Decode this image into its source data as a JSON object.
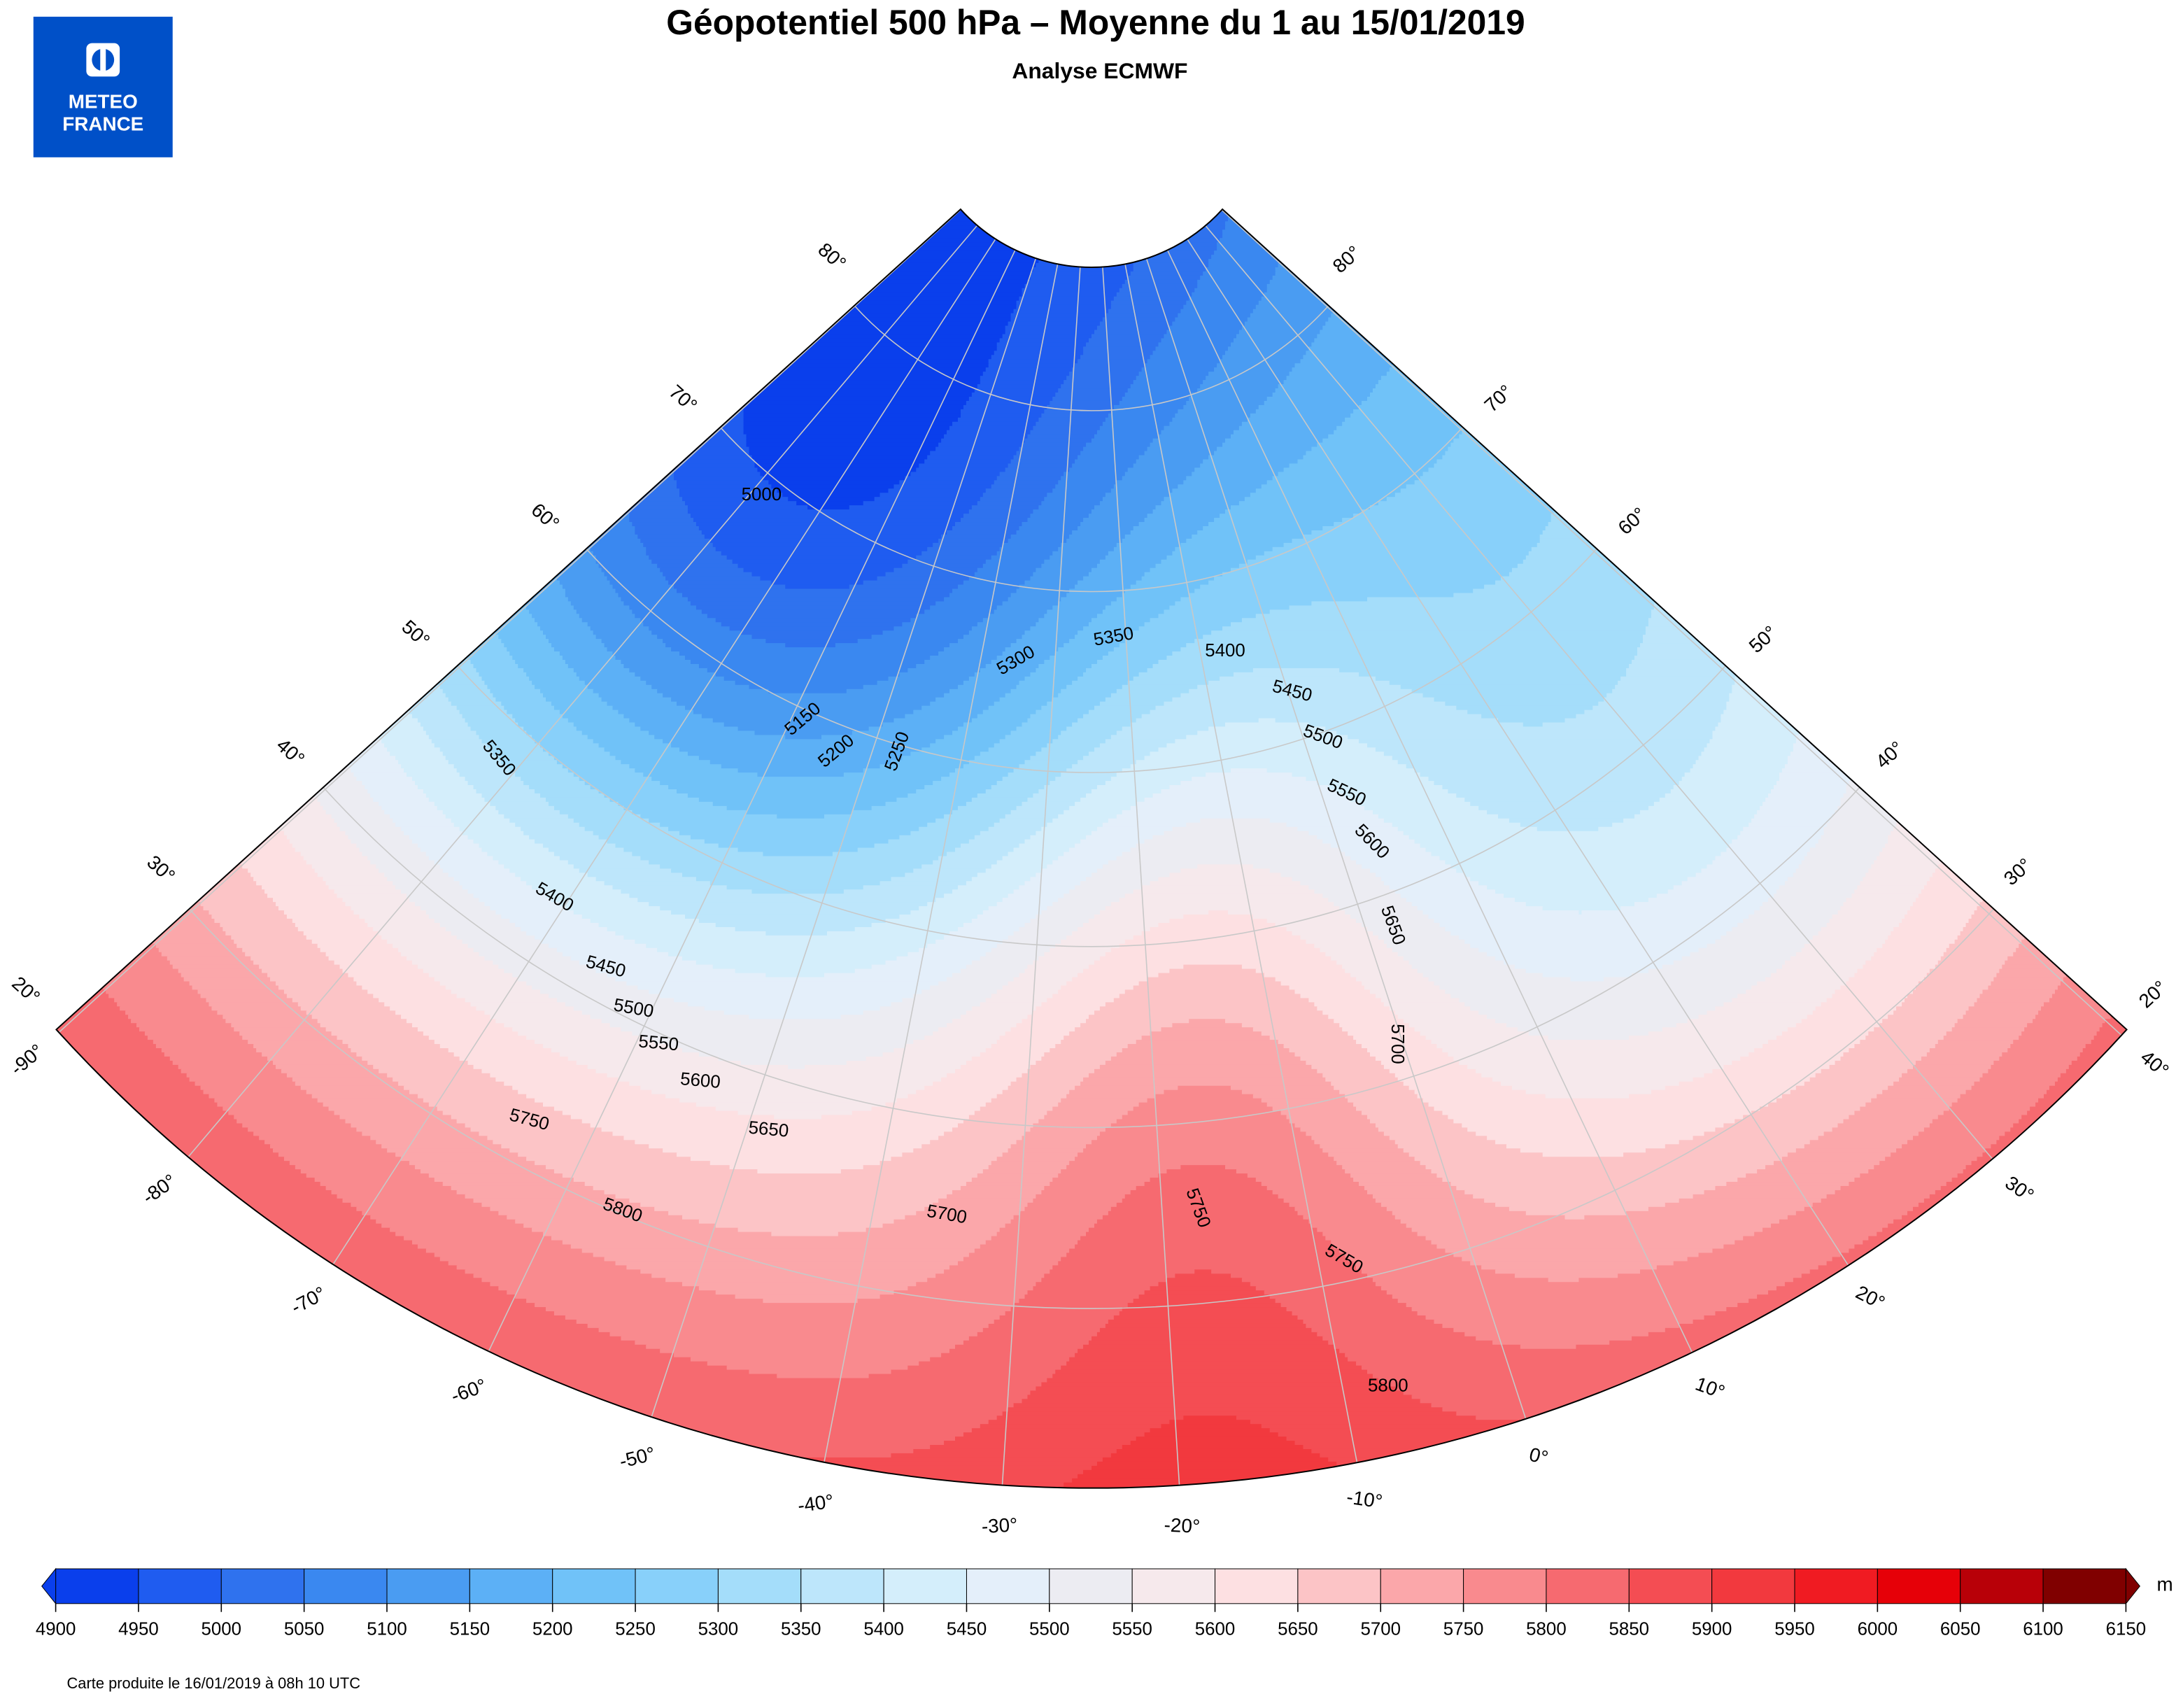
{
  "header": {
    "title": "Géopotentiel 500 hPa – Moyenne du 1 au 15/01/2019",
    "subtitle": "Analyse ECMWF"
  },
  "logo": {
    "line1": "METEO",
    "line2": "FRANCE"
  },
  "map": {
    "lat_labels_left": [
      "80°",
      "70°",
      "60°",
      "50°",
      "40°",
      "30°",
      "20°"
    ],
    "lat_labels_right": [
      "80°",
      "70°",
      "60°",
      "50°",
      "40°",
      "30°",
      "20°"
    ],
    "lon_labels": [
      "-90°",
      "-80°",
      "-70°",
      "-60°",
      "-50°",
      "-40°",
      "-30°",
      "-20°",
      "-10°",
      "0°",
      "10°",
      "20°",
      "30°",
      "40°"
    ],
    "contour_labels": [
      5000,
      5150,
      5200,
      5250,
      5300,
      5350,
      5400,
      5450,
      5500,
      5550,
      5600,
      5650,
      5700,
      5350,
      5400,
      5450,
      5500,
      5550,
      5600,
      5650,
      5750,
      5800,
      5700,
      5750,
      5750,
      5800
    ]
  },
  "colorbar": {
    "unit": "m",
    "ticks": [
      4900,
      4950,
      5000,
      5050,
      5100,
      5150,
      5200,
      5250,
      5300,
      5350,
      5400,
      5450,
      5500,
      5550,
      5600,
      5650,
      5700,
      5750,
      5800,
      5850,
      5900,
      5950,
      6000,
      6050,
      6100,
      6150
    ],
    "colors": [
      "#0a3fec",
      "#1f5cf0",
      "#2f72ee",
      "#3a88f0",
      "#4a9cf2",
      "#5cb0f6",
      "#70c2f8",
      "#88d0fa",
      "#a4ddfa",
      "#bde6fb",
      "#d4eefb",
      "#e4effa",
      "#ececf2",
      "#f6e9ec",
      "#fde0e2",
      "#fcc4c6",
      "#fba7aa",
      "#f98a8e",
      "#f66a70",
      "#f44d53",
      "#f2393e",
      "#f01b22",
      "#e60008",
      "#b80008",
      "#800000"
    ]
  },
  "footer": "Carte produite le 16/01/2019 à 08h 10 UTC"
}
